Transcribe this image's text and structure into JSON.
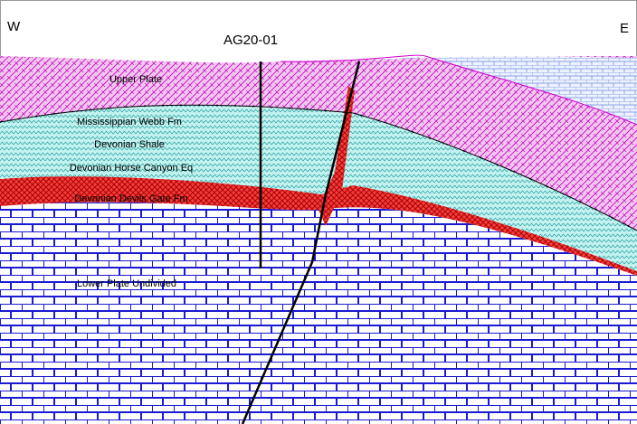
{
  "directions": {
    "west": "W",
    "east": "E"
  },
  "drillhole": "AG20-01",
  "units": [
    "Upper Plate",
    "Mississippian Webb Fm",
    "Devonian Shale",
    "Devonian Horse Canyon Eq",
    "Devonian Devils Gate Fm",
    "Lower Plate Undivided"
  ]
}
